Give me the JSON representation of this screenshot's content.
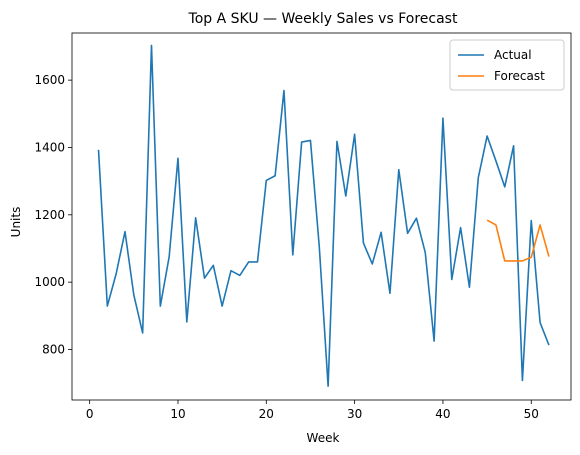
{
  "chart_data": {
    "type": "line",
    "title": "Top A SKU — Weekly Sales vs Forecast",
    "xlabel": "Week",
    "ylabel": "Units",
    "xlim": [
      -2,
      54.5
    ],
    "ylim": [
      650,
      1740
    ],
    "xticks": [
      0,
      10,
      20,
      30,
      40,
      50
    ],
    "yticks": [
      800,
      1000,
      1200,
      1400,
      1600
    ],
    "grid": false,
    "legend_position": "upper right",
    "series": [
      {
        "name": "Actual",
        "color": "#1f77b4",
        "x": [
          1,
          2,
          3,
          4,
          5,
          6,
          7,
          8,
          9,
          10,
          11,
          12,
          13,
          14,
          15,
          16,
          17,
          18,
          19,
          20,
          21,
          22,
          23,
          24,
          25,
          26,
          27,
          28,
          29,
          30,
          31,
          32,
          33,
          34,
          35,
          36,
          37,
          38,
          39,
          40,
          41,
          42,
          43,
          44,
          45,
          46,
          47,
          48,
          49,
          50,
          51,
          52
        ],
        "y": [
          1393,
          929,
          1025,
          1150,
          962,
          849,
          1703,
          929,
          1075,
          1368,
          882,
          1191,
          1012,
          1050,
          929,
          1034,
          1020,
          1060,
          1060,
          1302,
          1316,
          1569,
          1081,
          1416,
          1421,
          1105,
          691,
          1418,
          1256,
          1439,
          1116,
          1054,
          1148,
          967,
          1334,
          1145,
          1190,
          1088,
          825,
          1487,
          1008,
          1162,
          985,
          1310,
          1434,
          1360,
          1283,
          1405,
          708,
          1183,
          880,
          813
        ]
      },
      {
        "name": "Forecast",
        "color": "#ff7f0e",
        "x": [
          45,
          46,
          47,
          48,
          49,
          50,
          51,
          52
        ],
        "y": [
          1184,
          1170,
          1063,
          1063,
          1063,
          1074,
          1170,
          1076
        ]
      }
    ]
  }
}
